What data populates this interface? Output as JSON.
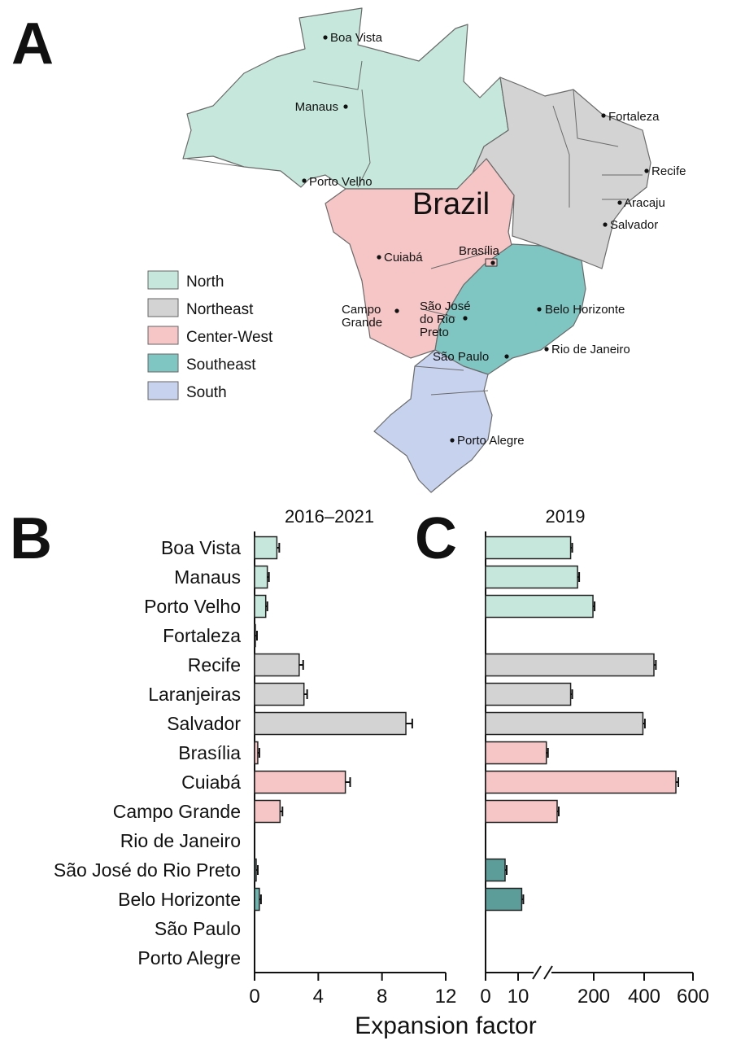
{
  "panel_letters": [
    "A",
    "B",
    "C"
  ],
  "map": {
    "country_label": "Brazil",
    "legend": [
      {
        "label": "North",
        "color": "#c6e8dc"
      },
      {
        "label": "Northeast",
        "color": "#d3d3d3"
      },
      {
        "label": "Center-West",
        "color": "#f5c6c5"
      },
      {
        "label": "Southeast",
        "color": "#7fc6c2"
      },
      {
        "label": "South",
        "color": "#c7d3ee"
      }
    ],
    "cities": [
      {
        "name": "Boa Vista",
        "label": "Boa Vista"
      },
      {
        "name": "Manaus",
        "label": "Manaus"
      },
      {
        "name": "Fortaleza",
        "label": "Fortaleza"
      },
      {
        "name": "Recife",
        "label": "Recife"
      },
      {
        "name": "Porto Velho",
        "label": "Porto Velho"
      },
      {
        "name": "Aracaju",
        "label": "Aracaju"
      },
      {
        "name": "Salvador",
        "label": "Salvador"
      },
      {
        "name": "Cuiabá",
        "label": "Cuiabá"
      },
      {
        "name": "Brasília",
        "label": "Brasília"
      },
      {
        "name": "Campo Grande",
        "label": "Campo\nGrande"
      },
      {
        "name": "São José do Rio Preto",
        "label": "São José\ndo Rio\nPreto"
      },
      {
        "name": "Belo Horizonte",
        "label": "Belo Horizonte"
      },
      {
        "name": "São Paulo",
        "label": "São Paulo"
      },
      {
        "name": "Rio de Janeiro",
        "label": "Rio de Janeiro"
      },
      {
        "name": "Porto Alegre",
        "label": "Porto Alegre"
      }
    ]
  },
  "xlabel": "Expansion factor",
  "chart_data": [
    {
      "type": "bar",
      "orientation": "horizontal",
      "panel": "B",
      "title": "2016–2021",
      "xlabel": "Expansion factor",
      "xlim": [
        0,
        12
      ],
      "xticks": [
        "0",
        "4",
        "8",
        "12"
      ],
      "categories": [
        "Boa Vista",
        "Manaus",
        "Porto Velho",
        "Fortaleza",
        "Recife",
        "Laranjeiras",
        "Salvador",
        "Brasília",
        "Cuiabá",
        "Campo Grande",
        "Rio de Janeiro",
        "São José do Rio Preto",
        "Belo Horizonte",
        "São Paulo",
        "Porto Alegre"
      ],
      "regions": [
        "North",
        "North",
        "North",
        "Northeast",
        "Northeast",
        "Northeast",
        "Northeast",
        "Center-West",
        "Center-West",
        "Center-West",
        "Southeast",
        "Southeast",
        "Southeast",
        "Southeast",
        "South"
      ],
      "values": [
        1.4,
        0.8,
        0.7,
        0.05,
        2.8,
        3.1,
        9.5,
        0.2,
        5.7,
        1.6,
        0,
        0.1,
        0.3,
        0,
        0
      ],
      "errors": [
        0.15,
        0.1,
        0.05,
        0.02,
        0.25,
        0.2,
        0.4,
        0.05,
        0.3,
        0.15,
        0,
        0.02,
        0.05,
        0,
        0
      ]
    },
    {
      "type": "bar",
      "orientation": "horizontal",
      "panel": "C",
      "title": "2019",
      "xlabel": "Expansion factor",
      "axis_break": true,
      "xticks": [
        "0",
        "10",
        "200",
        "400",
        "600"
      ],
      "categories": [
        "Boa Vista",
        "Manaus",
        "Porto Velho",
        "Fortaleza",
        "Recife",
        "Laranjeiras",
        "Salvador",
        "Brasília",
        "Cuiabá",
        "Campo Grande",
        "Rio de Janeiro",
        "São José do Rio Preto",
        "Belo Horizonte",
        "São Paulo",
        "Porto Alegre"
      ],
      "regions": [
        "North",
        "North",
        "North",
        "Northeast",
        "Northeast",
        "Northeast",
        "Northeast",
        "Center-West",
        "Center-West",
        "Center-West",
        "Southeast",
        "Southeast",
        "Southeast",
        "Southeast",
        "South"
      ],
      "values": [
        140,
        158,
        198,
        0,
        440,
        140,
        395,
        77,
        530,
        105,
        0,
        6,
        13,
        0,
        0
      ],
      "errors": [
        4,
        4,
        5,
        0,
        8,
        4,
        8,
        3,
        10,
        4,
        0,
        0.4,
        0.5,
        0,
        0
      ]
    }
  ],
  "region_colors": {
    "North": "#c6e8dc",
    "Northeast": "#d3d3d3",
    "Center-West": "#f5c6c5",
    "Southeast": "#6fb5b0",
    "Southeast-dark": "#5c9c99",
    "South": "#c7d3ee"
  }
}
